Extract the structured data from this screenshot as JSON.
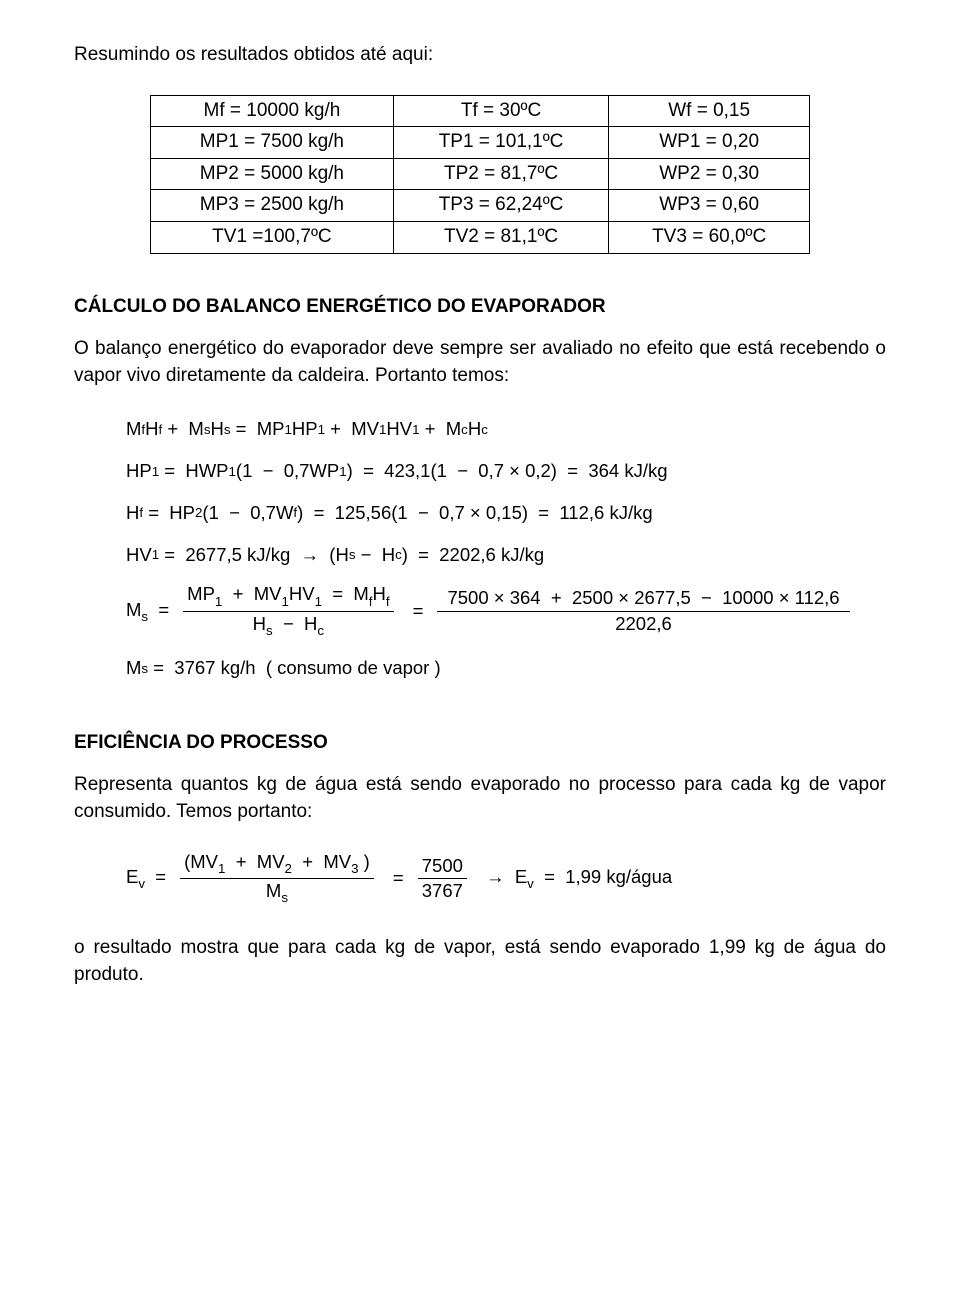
{
  "intro": "Resumindo os resultados obtidos até aqui:",
  "table": {
    "rows": [
      [
        "Mf = 10000 kg/h",
        "Tf = 30ºC",
        "Wf = 0,15"
      ],
      [
        "MP1 = 7500 kg/h",
        "TP1 = 101,1ºC",
        "WP1 = 0,20"
      ],
      [
        "MP2 = 5000 kg/h",
        "TP2 = 81,7ºC",
        "WP2 = 0,30"
      ],
      [
        "MP3 = 2500 kg/h",
        "TP3 = 62,24ºC",
        "WP3 = 0,60"
      ],
      [
        "TV1 =100,7ºC",
        "TV2 = 81,1ºC",
        "TV3 = 60,0ºC"
      ]
    ]
  },
  "sections": {
    "balance": {
      "title": "CÁLCULO DO BALANCO ENERGÉTICO DO EVAPORADOR",
      "text1": "O balanço energético do evaporador deve sempre ser avaliado no efeito que está recebendo o vapor vivo diretamente da caldeira. Portanto temos:",
      "eq1_html": "M<sub>f</sub>H<sub>f</sub> &nbsp;+&nbsp; M<sub>s</sub>H<sub>s</sub> &nbsp;=&nbsp; MP<sub>1</sub>HP<sub>1</sub> &nbsp;+&nbsp; MV<sub>1</sub>HV<sub>1</sub> &nbsp;+&nbsp; M<sub>c</sub>H<sub>c</sub>",
      "eq2_html": "HP<sub>1</sub> &nbsp;=&nbsp; HWP<sub>1</sub> (1 &nbsp;&minus;&nbsp; 0,7WP<sub>1</sub> ) &nbsp;=&nbsp; 423,1(1 &nbsp;&minus;&nbsp; 0,7 &times; 0,2) &nbsp;=&nbsp; 364 kJ/kg",
      "eq3_html": "H<sub>f</sub> &nbsp;=&nbsp; HP<sub>2</sub> (1 &nbsp;&minus;&nbsp; 0,7W<sub>f</sub> ) &nbsp;=&nbsp; 125,56(1 &nbsp;&minus;&nbsp; 0,7 &times; 0,15) &nbsp;=&nbsp; 112,6 kJ/kg",
      "eq4_html": "HV<sub>1</sub> &nbsp;=&nbsp; 2677,5 kJ/kg &nbsp;&rarr;&nbsp; (H<sub>s</sub> &nbsp;&minus;&nbsp; H<sub>c</sub> ) &nbsp;=&nbsp; 2202,6 kJ/kg",
      "eq5_lhs_html": "M<sub>s</sub> &nbsp;=",
      "eq5_frac1_num_html": "MP<sub>1</sub> &nbsp;+&nbsp; MV<sub>1</sub>HV<sub>1</sub> &nbsp;=&nbsp; M<sub>f</sub>H<sub>f</sub>",
      "eq5_frac1_den_html": "H<sub>s</sub> &nbsp;&minus;&nbsp; H<sub>c</sub>",
      "eq5_mid_html": "&nbsp;=",
      "eq5_frac2_num_html": "7500 &times; 364 &nbsp;+&nbsp; 2500 &times; 2677,5 &nbsp;&minus;&nbsp; 10000 &times; 112,6",
      "eq5_frac2_den_html": "2202,6",
      "eq6_html": "M<sub>s</sub> &nbsp;=&nbsp; 3767 kg/h &nbsp;( consumo de vapor )"
    },
    "eff": {
      "title": "EFICIÊNCIA DO PROCESSO",
      "text": "Representa quantos kg de água está sendo evaporado no processo para cada kg de vapor consumido. Temos portanto:",
      "eq_lhs_html": "E<sub>v</sub> &nbsp;=",
      "eq_frac1_num_html": "(MV<sub>1</sub> &nbsp;+&nbsp; MV<sub>2</sub> &nbsp;+&nbsp; MV<sub>3</sub> )",
      "eq_frac1_den_html": "M<sub>s</sub>",
      "eq_mid1_html": "&nbsp;=",
      "eq_frac2_num_html": "7500",
      "eq_frac2_den_html": "3767",
      "eq_rhs_html": "&nbsp;&rarr;&nbsp; E<sub>v</sub> &nbsp;=&nbsp; 1,99 kg/água",
      "text2": "o resultado mostra que para cada kg de vapor, está sendo evaporado 1,99 kg de água do produto."
    }
  }
}
